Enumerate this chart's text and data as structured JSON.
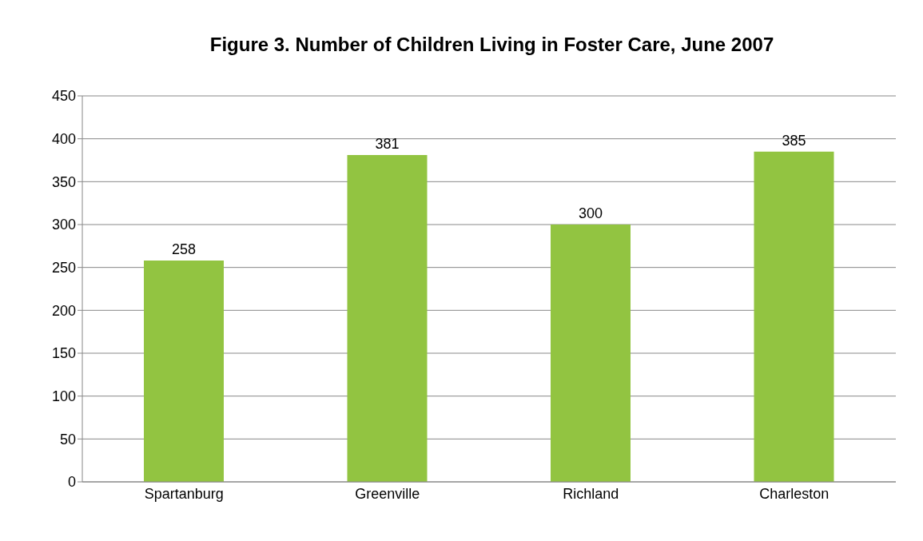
{
  "chart_data": {
    "type": "bar",
    "title": "Figure 3.  Number of Children Living in Foster Care, June 2007",
    "categories": [
      "Spartanburg",
      "Greenville",
      "Richland",
      "Charleston"
    ],
    "values": [
      258,
      381,
      300,
      385
    ],
    "color": "#92c441",
    "ylim": [
      0,
      450
    ],
    "yticks": [
      0,
      50,
      100,
      150,
      200,
      250,
      300,
      350,
      400,
      450
    ],
    "grid": "y",
    "data_labels": true,
    "legend": false
  }
}
